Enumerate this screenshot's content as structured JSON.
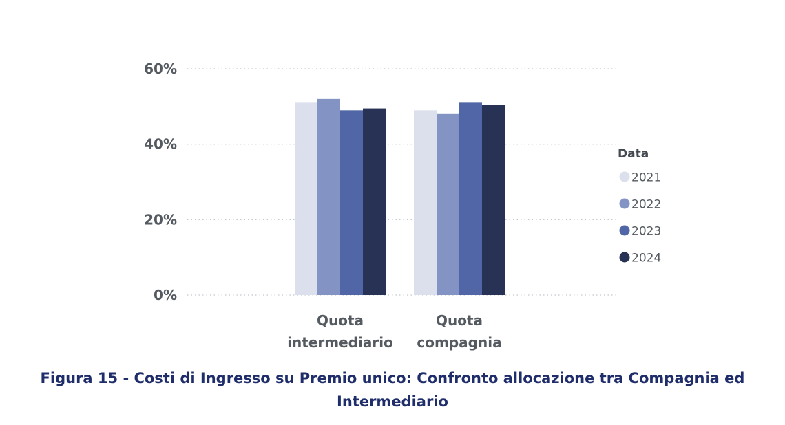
{
  "chart_data": {
    "type": "bar",
    "categories": [
      "Quota intermediario",
      "Quota compagnia"
    ],
    "category_lines": [
      [
        "Quota",
        "intermediario"
      ],
      [
        "Quota",
        "compagnia"
      ]
    ],
    "series": [
      {
        "name": "2021",
        "values": [
          51,
          49
        ],
        "color": "#dce0ec"
      },
      {
        "name": "2022",
        "values": [
          52,
          48
        ],
        "color": "#8394c4"
      },
      {
        "name": "2023",
        "values": [
          49,
          51
        ],
        "color": "#5166a6"
      },
      {
        "name": "2024",
        "values": [
          49.5,
          50.5
        ],
        "color": "#283254"
      }
    ],
    "ylim": [
      0,
      60
    ],
    "y_ticks": [
      0,
      20,
      40,
      60
    ],
    "y_tick_labels": [
      "0%",
      "20%",
      "40%",
      "60%"
    ],
    "legend_title": "Data",
    "legend_position": "right",
    "grid": "dotted horizontal",
    "xlabel": "",
    "ylabel": ""
  },
  "caption": {
    "line1": "Figura 15 - Costi di Ingresso su Premio unico: Confronto allocazione tra Compagnia ed",
    "line2": "Intermediario"
  }
}
